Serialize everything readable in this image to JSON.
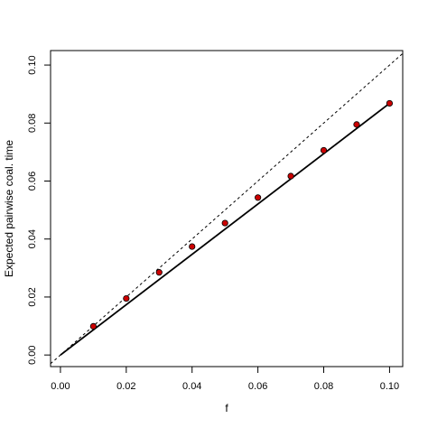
{
  "chart_data": {
    "type": "scatter",
    "xlabel": "f",
    "ylabel": "Expected pairwise coal. time",
    "xlim": [
      -0.003,
      0.104
    ],
    "ylim": [
      -0.004,
      0.105
    ],
    "x_ticks": [
      0.0,
      0.02,
      0.04,
      0.06,
      0.08,
      0.1
    ],
    "x_tick_labels": [
      "0.00",
      "0.02",
      "0.04",
      "0.06",
      "0.08",
      "0.10"
    ],
    "y_ticks": [
      0.0,
      0.02,
      0.04,
      0.06,
      0.08,
      0.1
    ],
    "y_tick_labels": [
      "0.00",
      "0.02",
      "0.04",
      "0.06",
      "0.08",
      "0.10"
    ],
    "grid": false,
    "series": [
      {
        "kind": "points",
        "x": [
          0.01,
          0.02,
          0.03,
          0.04,
          0.05,
          0.06,
          0.07,
          0.08,
          0.09,
          0.1
        ],
        "y": [
          0.0099,
          0.0195,
          0.0285,
          0.0374,
          0.0455,
          0.0543,
          0.0617,
          0.0706,
          0.0795,
          0.0868
        ],
        "color": "#cc0000"
      },
      {
        "kind": "line",
        "style": "solid",
        "x": [
          0.0,
          0.1
        ],
        "y": [
          0.0,
          0.0868
        ],
        "color": "#000000"
      },
      {
        "kind": "line",
        "style": "dashed",
        "x": [
          -0.003,
          0.104
        ],
        "y": [
          -0.003,
          0.104
        ],
        "color": "#000000"
      }
    ]
  }
}
